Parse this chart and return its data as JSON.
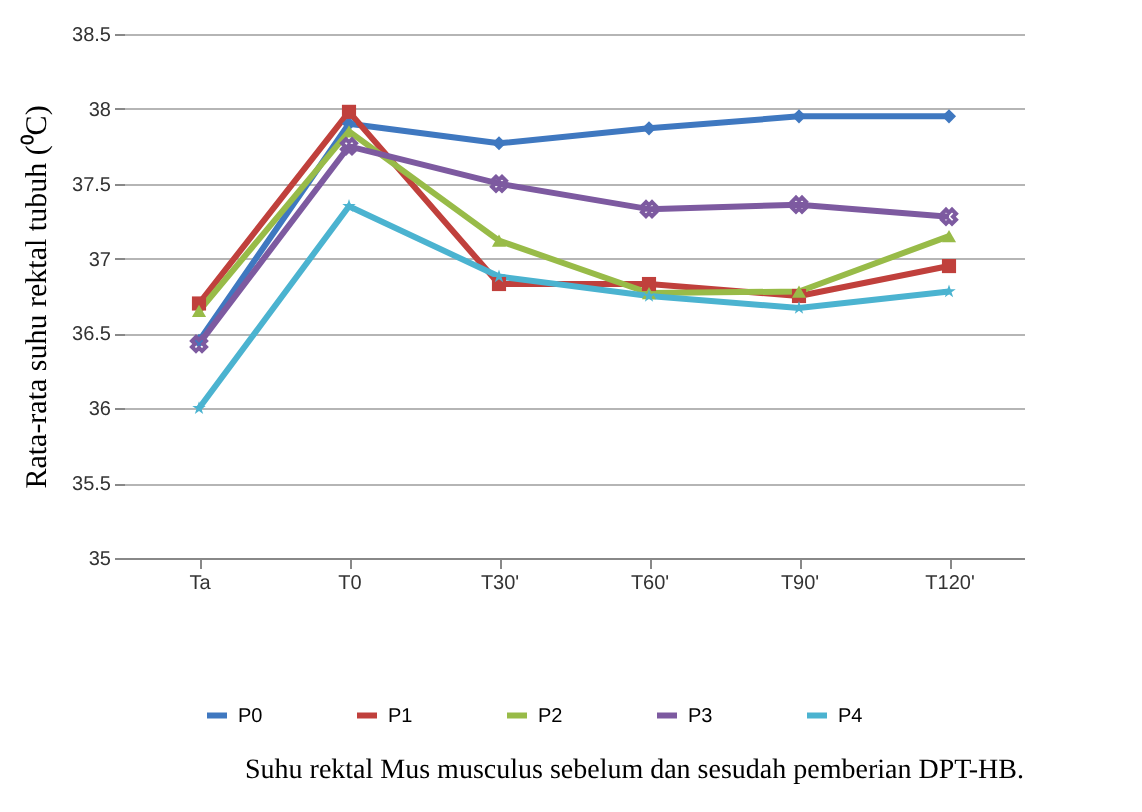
{
  "chart_data": {
    "type": "line",
    "ylabel": "Rata-rata suhu rektal tubuh (⁰C)",
    "annotations": [
      "Suhu rektal Mus musculus sebelum dan sesudah pemberian DPT-HB."
    ],
    "categories": [
      "Ta",
      "T0",
      "T30'",
      "T60'",
      "T90'",
      "T120'"
    ],
    "ylim": [
      35,
      38.5
    ],
    "yticks": [
      35,
      35.5,
      36,
      36.5,
      37,
      37.5,
      38,
      38.5
    ],
    "grid": "y",
    "legend": "bottom",
    "series": [
      {
        "name": "P0",
        "color": "#3f78c0",
        "marker": "diamond",
        "values": [
          36.45,
          37.9,
          37.77,
          37.87,
          37.95,
          37.95
        ]
      },
      {
        "name": "P1",
        "color": "#c0403c",
        "marker": "square",
        "values": [
          36.7,
          37.98,
          36.83,
          36.83,
          36.75,
          36.95
        ]
      },
      {
        "name": "P2",
        "color": "#98bb48",
        "marker": "triangle",
        "values": [
          36.65,
          37.85,
          37.12,
          36.77,
          36.78,
          37.15
        ]
      },
      {
        "name": "P3",
        "color": "#7d5aa0",
        "marker": "cross",
        "values": [
          36.43,
          37.75,
          37.5,
          37.33,
          37.36,
          37.28
        ]
      },
      {
        "name": "P4",
        "color": "#4bb3d0",
        "marker": "star",
        "values": [
          36.0,
          37.35,
          36.88,
          36.75,
          36.67,
          36.78
        ]
      }
    ]
  }
}
